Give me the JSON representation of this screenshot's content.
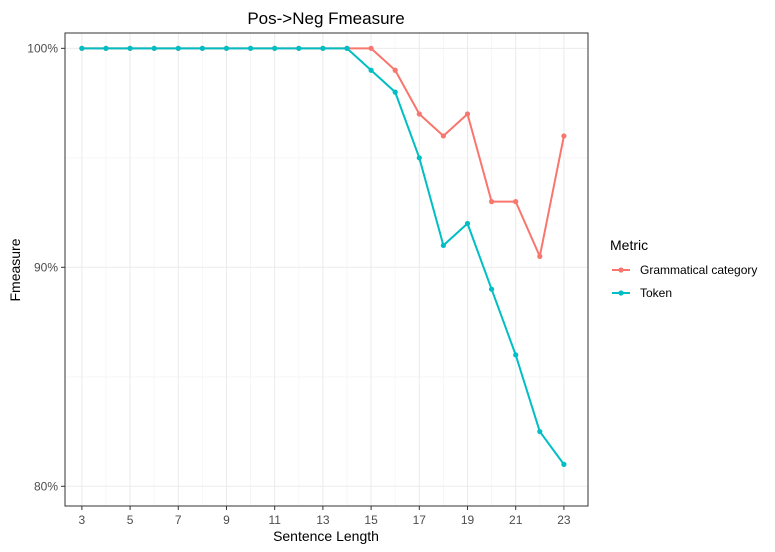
{
  "chart_data": {
    "type": "line",
    "title": "Pos->Neg Fmeasure",
    "xlabel": "Sentence Length",
    "ylabel": "Fmeasure",
    "x": [
      3,
      4,
      5,
      6,
      7,
      8,
      9,
      10,
      11,
      12,
      13,
      14,
      15,
      16,
      17,
      18,
      19,
      20,
      21,
      22,
      23
    ],
    "xticks": [
      3,
      5,
      7,
      9,
      11,
      13,
      15,
      17,
      19,
      21,
      23
    ],
    "xlim": [
      2.3,
      24
    ],
    "ylim": [
      0.791,
      1.007
    ],
    "yticks": [
      0.8,
      0.9,
      1.0
    ],
    "ytick_labels": [
      "80%",
      "90%",
      "100%"
    ],
    "grid": true,
    "legend": {
      "title": "Metric",
      "placement": "right"
    },
    "series": [
      {
        "name": "Grammatical category",
        "color": "#F8766D",
        "values": [
          1,
          1,
          1,
          1,
          1,
          1,
          1,
          1,
          1,
          1,
          1,
          1,
          1,
          0.99,
          0.97,
          0.96,
          0.97,
          0.93,
          0.93,
          0.905,
          0.96
        ]
      },
      {
        "name": "Token",
        "color": "#00BFC4",
        "values": [
          1,
          1,
          1,
          1,
          1,
          1,
          1,
          1,
          1,
          1,
          1,
          1,
          0.99,
          0.98,
          0.95,
          0.91,
          0.92,
          0.89,
          0.86,
          0.825,
          0.81
        ]
      }
    ]
  }
}
